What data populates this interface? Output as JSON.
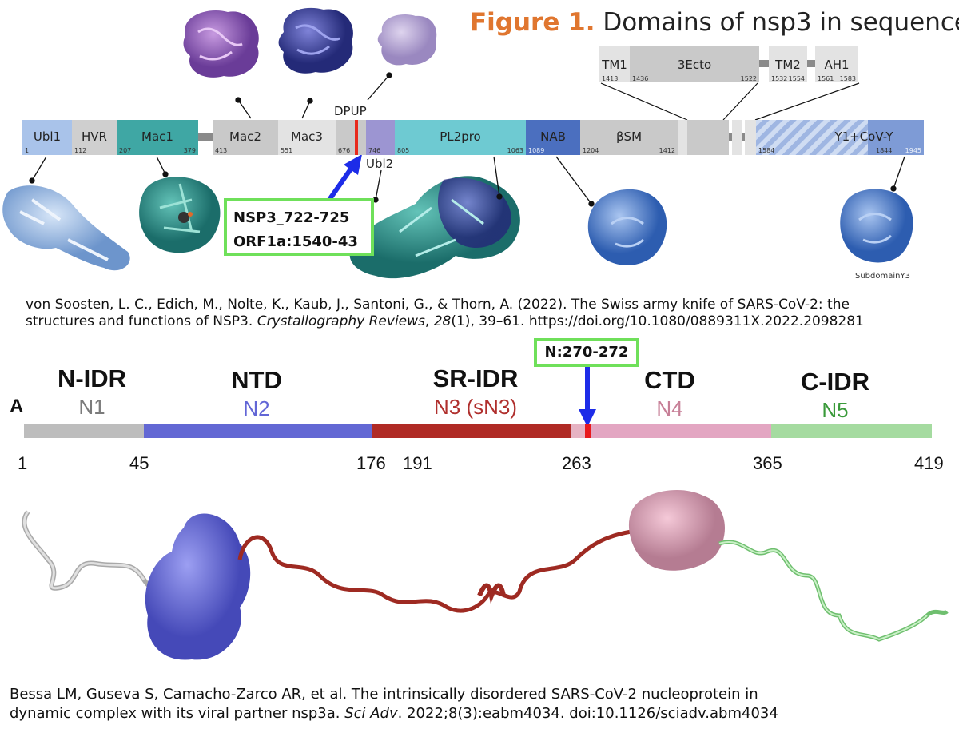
{
  "figure_title": {
    "label": "Figure 1.",
    "text": "Domains of nsp3 in sequence."
  },
  "nsp3": {
    "top_label": "DPUP",
    "domains": [
      {
        "name": "Ubl1",
        "start": "1",
        "color": "#a9c3ea"
      },
      {
        "name": "HVR",
        "start": "112",
        "color": "#cfcfcf"
      },
      {
        "name": "Mac1",
        "start": "207",
        "end": "379",
        "color": "#3fa7a4"
      },
      {
        "name": "Mac2",
        "start": "413",
        "color": "#c9c9c9"
      },
      {
        "name": "Mac3",
        "start": "551",
        "color": "#e3e3e3"
      },
      {
        "name": "",
        "start": "676",
        "color": "#c9c9c9"
      },
      {
        "name": "",
        "start": "746",
        "color": "#9c95d2"
      },
      {
        "name": "PL2pro",
        "start": "805",
        "end": "1063",
        "color": "#6ecad2"
      },
      {
        "name": "NAB",
        "start": "1089",
        "color": "#4b6fbf"
      },
      {
        "name": "βSM",
        "start": "1204",
        "end": "1412",
        "color": "#c9c9c9"
      },
      {
        "name": "Y1+CoV-Y",
        "start": "1584",
        "mid": "1844",
        "end": "1945",
        "color": "#7e9bd6"
      }
    ],
    "ubl2_label": "Ubl2",
    "tm_domains": [
      {
        "name": "TM1",
        "start": "1413"
      },
      {
        "name": "3Ecto",
        "start": "1436",
        "end": "1522"
      },
      {
        "name": "TM2",
        "start": "1532",
        "end": "1554"
      },
      {
        "name": "AH1",
        "start": "1561",
        "end": "1583"
      }
    ],
    "subdomain_label": "SubdomainY3",
    "callout_line1": "NSP3_722-725",
    "callout_line2": "ORF1a:1540-43",
    "citation": {
      "line1": "von Soosten, L. C., Edich, M., Nolte, K., Kaub, J., Santoni, G., & Thorn, A. (2022). The Swiss army knife of SARS-CoV-2: the",
      "line2_pre": "structures and functions of NSP3. ",
      "journal": "Crystallography Reviews",
      "line2_mid": ", ",
      "volume": "28",
      "line2_post": "(1), 39–61. https://doi.org/10.1080/0889311X.2022.2098281"
    }
  },
  "nprotein": {
    "panel_letter": "A",
    "callout": "N:270-272",
    "regions": [
      {
        "big": "N-IDR",
        "small": "N1",
        "color": "#7b7b7b"
      },
      {
        "big": "NTD",
        "small": "N2",
        "color": "#6266d6"
      },
      {
        "big": "SR-IDR",
        "small": "N3 (sN3)",
        "color": "#b0302e"
      },
      {
        "big": "CTD",
        "small": "N4",
        "color": "#c77f97"
      },
      {
        "big": "C-IDR",
        "small": "N5",
        "color": "#3a9a3a"
      }
    ],
    "ticks": [
      "1",
      "45",
      "176",
      "191",
      "263",
      "365",
      "419"
    ],
    "bar_colors": {
      "n1": "#bdbdbd",
      "n2": "#6368d4",
      "n3": "#b02a25",
      "linker": "#e6b3c3",
      "highlight": "#e8191c",
      "n4": "#e3a6c2",
      "n5": "#a5dba0"
    },
    "citation": {
      "line1": "Bessa LM, Guseva S, Camacho-Zarco AR, et al. The intrinsically disordered SARS-CoV-2 nucleoprotein in",
      "line2_pre": "dynamic complex with its viral partner nsp3a.  ",
      "journal": "Sci Adv",
      "line2_post": ". 2022;8(3):eabm4034. doi:10.1126/sciadv.abm4034"
    }
  }
}
